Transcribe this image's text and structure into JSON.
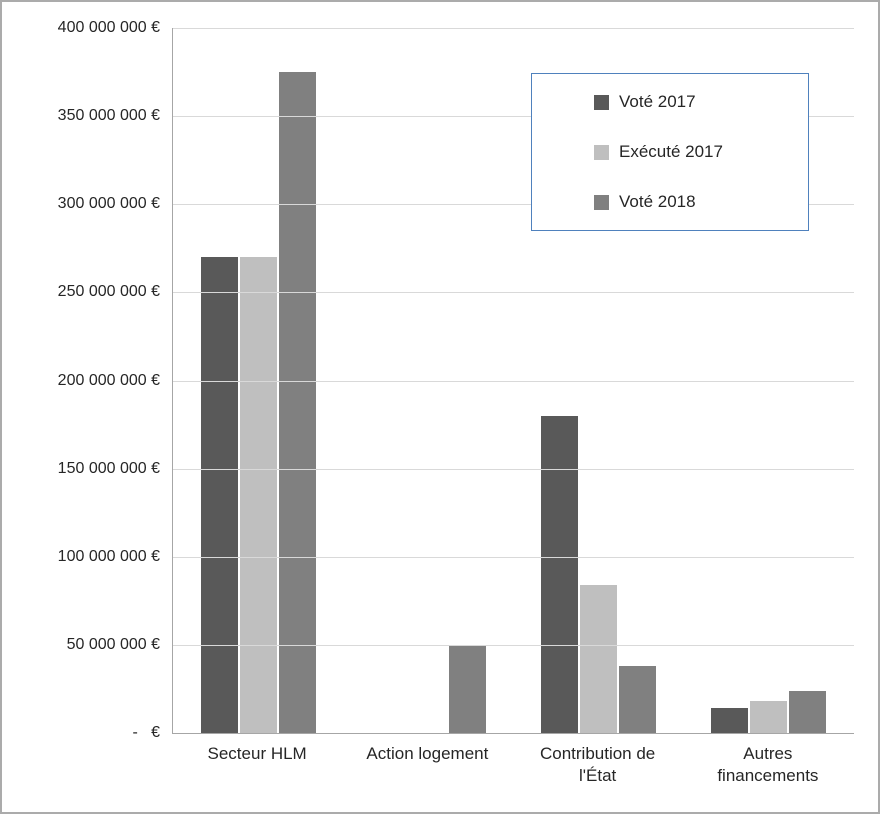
{
  "chart_data": {
    "type": "bar",
    "title": "",
    "xlabel": "",
    "ylabel": "",
    "grid": true,
    "legend_position": "upper right",
    "unit": "€",
    "categories": [
      "Secteur HLM",
      "Action logement",
      "Contribution de l'État",
      "Autres financements"
    ],
    "series": [
      {
        "name": "Voté 2017",
        "color": "#595959",
        "values": [
          270000000,
          0,
          180000000,
          14000000
        ]
      },
      {
        "name": "Exécuté 2017",
        "color": "#bfbfbf",
        "values": [
          270000000,
          0,
          84000000,
          18000000
        ]
      },
      {
        "name": "Voté 2018",
        "color": "#808080",
        "values": [
          375000000,
          50000000,
          38000000,
          24000000
        ]
      }
    ],
    "ylim": [
      0,
      400000000
    ],
    "yticks": [
      {
        "value": 400000000,
        "label": "400 000 000 €"
      },
      {
        "value": 350000000,
        "label": "350 000 000 €"
      },
      {
        "value": 300000000,
        "label": "300 000 000 €"
      },
      {
        "value": 250000000,
        "label": "250 000 000 €"
      },
      {
        "value": 200000000,
        "label": "200 000 000 €"
      },
      {
        "value": 150000000,
        "label": "150 000 000 €"
      },
      {
        "value": 100000000,
        "label": "100 000 000 €"
      },
      {
        "value": 50000000,
        "label": "50 000 000 €"
      },
      {
        "value": 0,
        "label": "-   €"
      }
    ],
    "colors": {
      "gridline": "#d9d9d9",
      "axis_line": "#a6a6a6",
      "chart_border": "#ababab",
      "legend_border": "#4f81bd",
      "text": "#262626",
      "background": "#ffffff"
    }
  }
}
